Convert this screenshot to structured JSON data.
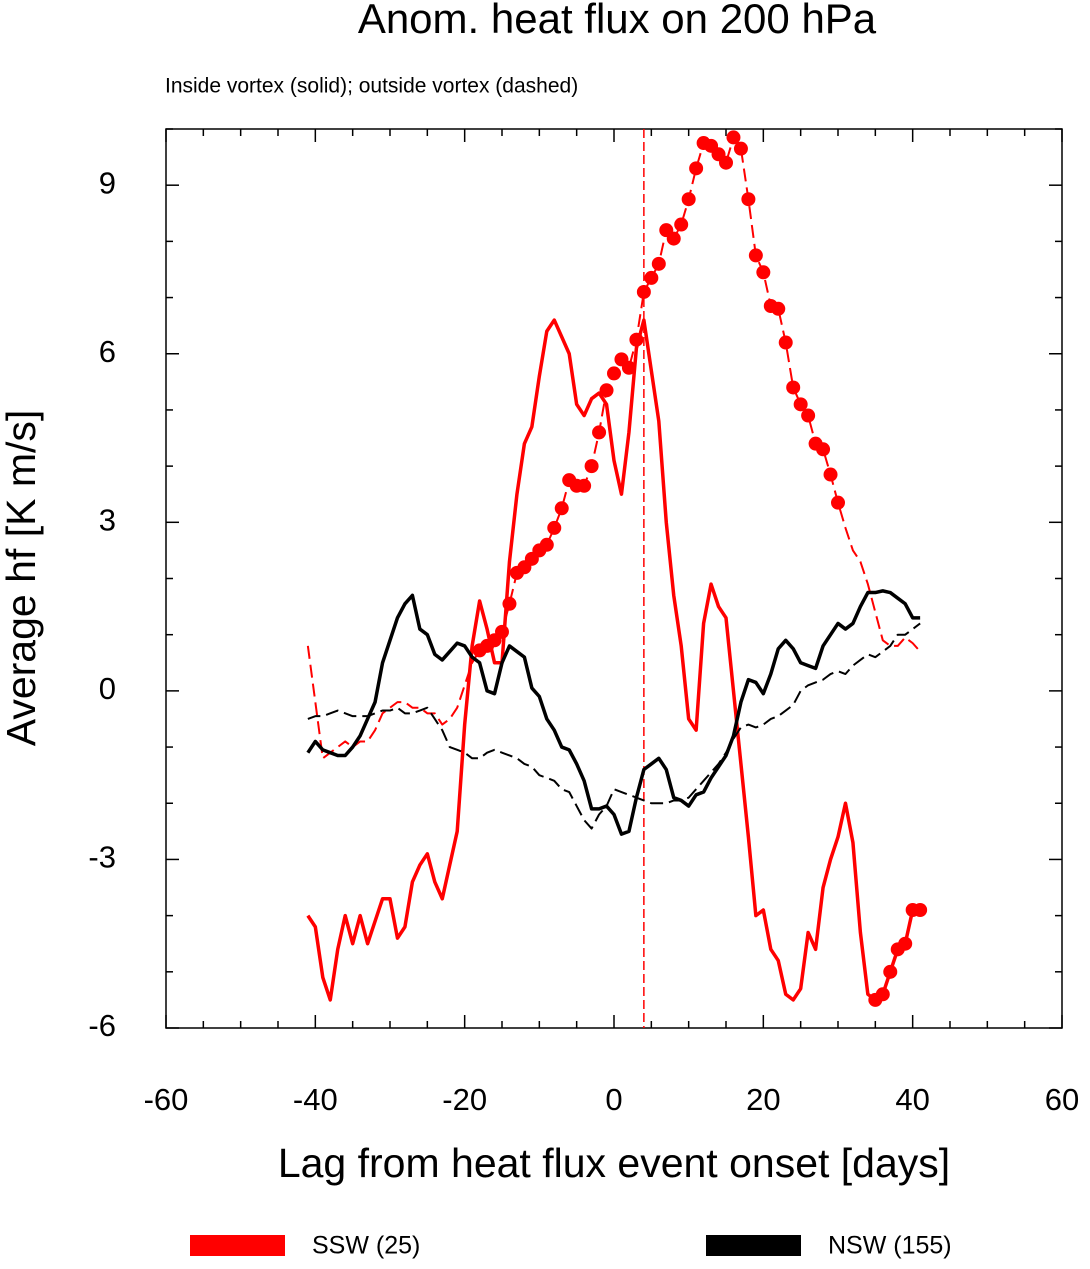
{
  "chart_data": {
    "type": "line",
    "title": "Anom. heat flux on 200 hPa",
    "subtitle": "Inside vortex (solid); outside vortex (dashed)",
    "x_label": "Lag from heat flux event onset [days]",
    "y_label": "Average hf [K m/s]",
    "xlim": [
      -60,
      60
    ],
    "ylim": [
      -6,
      10
    ],
    "xticks": [
      -60,
      -40,
      -20,
      0,
      20,
      40,
      60
    ],
    "yticks": [
      -6,
      -3,
      0,
      3,
      6,
      9
    ],
    "xminorticks": [
      -55,
      -50,
      -45,
      -35,
      -30,
      -25,
      -15,
      -10,
      -5,
      5,
      10,
      15,
      25,
      30,
      35,
      45,
      50,
      55
    ],
    "yminorticks": [
      -5,
      -4,
      -2,
      -1,
      1,
      2,
      4,
      5,
      7,
      8,
      10
    ],
    "vline": 4,
    "vline_color": "#ff0000",
    "x": [
      -41,
      -40,
      -39,
      -38,
      -37,
      -36,
      -35,
      -34,
      -33,
      -32,
      -31,
      -30,
      -29,
      -28,
      -27,
      -26,
      -25,
      -24,
      -23,
      -22,
      -21,
      -20,
      -19,
      -18,
      -17,
      -16,
      -15,
      -14,
      -13,
      -12,
      -11,
      -10,
      -9,
      -8,
      -7,
      -6,
      -5,
      -4,
      -3,
      -2,
      -1,
      0,
      1,
      2,
      3,
      4,
      5,
      6,
      7,
      8,
      9,
      10,
      11,
      12,
      13,
      14,
      15,
      16,
      17,
      18,
      19,
      20,
      21,
      22,
      23,
      24,
      25,
      26,
      27,
      28,
      29,
      30,
      31,
      32,
      33,
      34,
      35,
      36,
      37,
      38,
      39,
      40,
      41
    ],
    "series": [
      {
        "name": "SSW (25)",
        "color": "#ff0000",
        "values": [
          -4.0,
          -4.2,
          -5.1,
          -5.5,
          -4.6,
          -4.0,
          -4.5,
          -4.0,
          -4.5,
          -4.1,
          -3.7,
          -3.7,
          -4.4,
          -4.2,
          -3.4,
          -3.1,
          -2.9,
          -3.4,
          -3.7,
          -3.1,
          -2.5,
          -0.6,
          0.8,
          1.6,
          1.1,
          0.5,
          0.5,
          2.3,
          3.5,
          4.4,
          4.7,
          5.6,
          6.4,
          6.6,
          6.3,
          6.0,
          5.1,
          4.9,
          5.2,
          5.3,
          5.1,
          4.1,
          3.5,
          4.6,
          6.1,
          6.6,
          5.7,
          4.8,
          3.0,
          1.7,
          0.8,
          -0.5,
          -0.7,
          1.2,
          1.9,
          1.5,
          1.3,
          0.0,
          -1.3,
          -2.6,
          -4.0,
          -3.9,
          -4.6,
          -4.8,
          -5.4,
          -5.5,
          -5.3,
          -4.3,
          -4.6,
          -3.5,
          -3.0,
          -2.6,
          -2.0,
          -2.7,
          -4.3,
          -5.4,
          -5.5,
          -5.4,
          -5.0,
          -4.6,
          -4.5,
          -3.9,
          -3.9
        ],
        "outside": [
          0.8,
          -0.2,
          -1.2,
          -1.1,
          -1.0,
          -0.9,
          -1.0,
          -0.9,
          -0.9,
          -0.7,
          -0.4,
          -0.3,
          -0.2,
          -0.2,
          -0.3,
          -0.3,
          -0.4,
          -0.4,
          -0.6,
          -0.5,
          -0.3,
          0.1,
          0.5,
          0.72,
          0.8,
          0.9,
          1.05,
          1.55,
          2.1,
          2.2,
          2.35,
          2.5,
          2.6,
          2.9,
          3.25,
          3.75,
          3.65,
          3.65,
          4.0,
          4.6,
          5.35,
          5.65,
          5.9,
          5.75,
          6.25,
          7.1,
          7.35,
          7.6,
          8.2,
          8.05,
          8.3,
          8.75,
          9.3,
          9.75,
          9.7,
          9.55,
          9.4,
          9.85,
          9.65,
          8.75,
          7.75,
          7.45,
          6.85,
          6.8,
          6.2,
          5.4,
          5.1,
          4.9,
          4.4,
          4.3,
          3.85,
          3.35,
          2.9,
          2.5,
          2.3,
          1.9,
          1.4,
          0.9,
          0.8,
          0.8,
          0.95,
          0.85,
          0.7
        ],
        "markers_values": [
          35,
          41
        ],
        "markers_outside": [
          -18,
          30
        ]
      },
      {
        "name": "NSW (155)",
        "color": "#000000",
        "values": [
          -1.1,
          -0.9,
          -1.05,
          -1.1,
          -1.15,
          -1.15,
          -1.0,
          -0.8,
          -0.5,
          -0.2,
          0.5,
          0.9,
          1.3,
          1.55,
          1.7,
          1.1,
          1.0,
          0.65,
          0.55,
          0.7,
          0.85,
          0.8,
          0.6,
          0.5,
          0.0,
          -0.05,
          0.5,
          0.8,
          0.7,
          0.6,
          0.05,
          -0.1,
          -0.5,
          -0.7,
          -1.0,
          -1.05,
          -1.3,
          -1.6,
          -2.1,
          -2.1,
          -2.05,
          -2.2,
          -2.55,
          -2.5,
          -1.9,
          -1.4,
          -1.3,
          -1.2,
          -1.4,
          -1.9,
          -1.95,
          -2.05,
          -1.85,
          -1.8,
          -1.55,
          -1.35,
          -1.15,
          -0.8,
          -0.2,
          0.2,
          0.15,
          -0.05,
          0.3,
          0.75,
          0.9,
          0.75,
          0.5,
          0.45,
          0.4,
          0.8,
          1.0,
          1.2,
          1.1,
          1.2,
          1.5,
          1.75,
          1.75,
          1.78,
          1.75,
          1.65,
          1.55,
          1.3,
          1.3
        ],
        "outside": [
          -0.5,
          -0.45,
          -0.45,
          -0.4,
          -0.35,
          -0.4,
          -0.45,
          -0.45,
          -0.45,
          -0.4,
          -0.35,
          -0.35,
          -0.3,
          -0.4,
          -0.4,
          -0.35,
          -0.3,
          -0.5,
          -0.7,
          -1.0,
          -1.05,
          -1.1,
          -1.2,
          -1.2,
          -1.1,
          -1.05,
          -1.1,
          -1.15,
          -1.2,
          -1.3,
          -1.35,
          -1.5,
          -1.55,
          -1.6,
          -1.75,
          -1.8,
          -2.05,
          -2.3,
          -2.45,
          -2.2,
          -2.05,
          -1.75,
          -1.8,
          -1.85,
          -1.9,
          -1.95,
          -2.0,
          -2.0,
          -2.0,
          -1.95,
          -1.95,
          -1.9,
          -1.75,
          -1.6,
          -1.45,
          -1.3,
          -1.1,
          -0.85,
          -0.65,
          -0.6,
          -0.65,
          -0.6,
          -0.5,
          -0.45,
          -0.35,
          -0.25,
          0.0,
          0.1,
          0.15,
          0.2,
          0.3,
          0.35,
          0.3,
          0.45,
          0.55,
          0.65,
          0.6,
          0.7,
          0.8,
          1.0,
          1.0,
          1.1,
          1.2
        ]
      }
    ]
  }
}
